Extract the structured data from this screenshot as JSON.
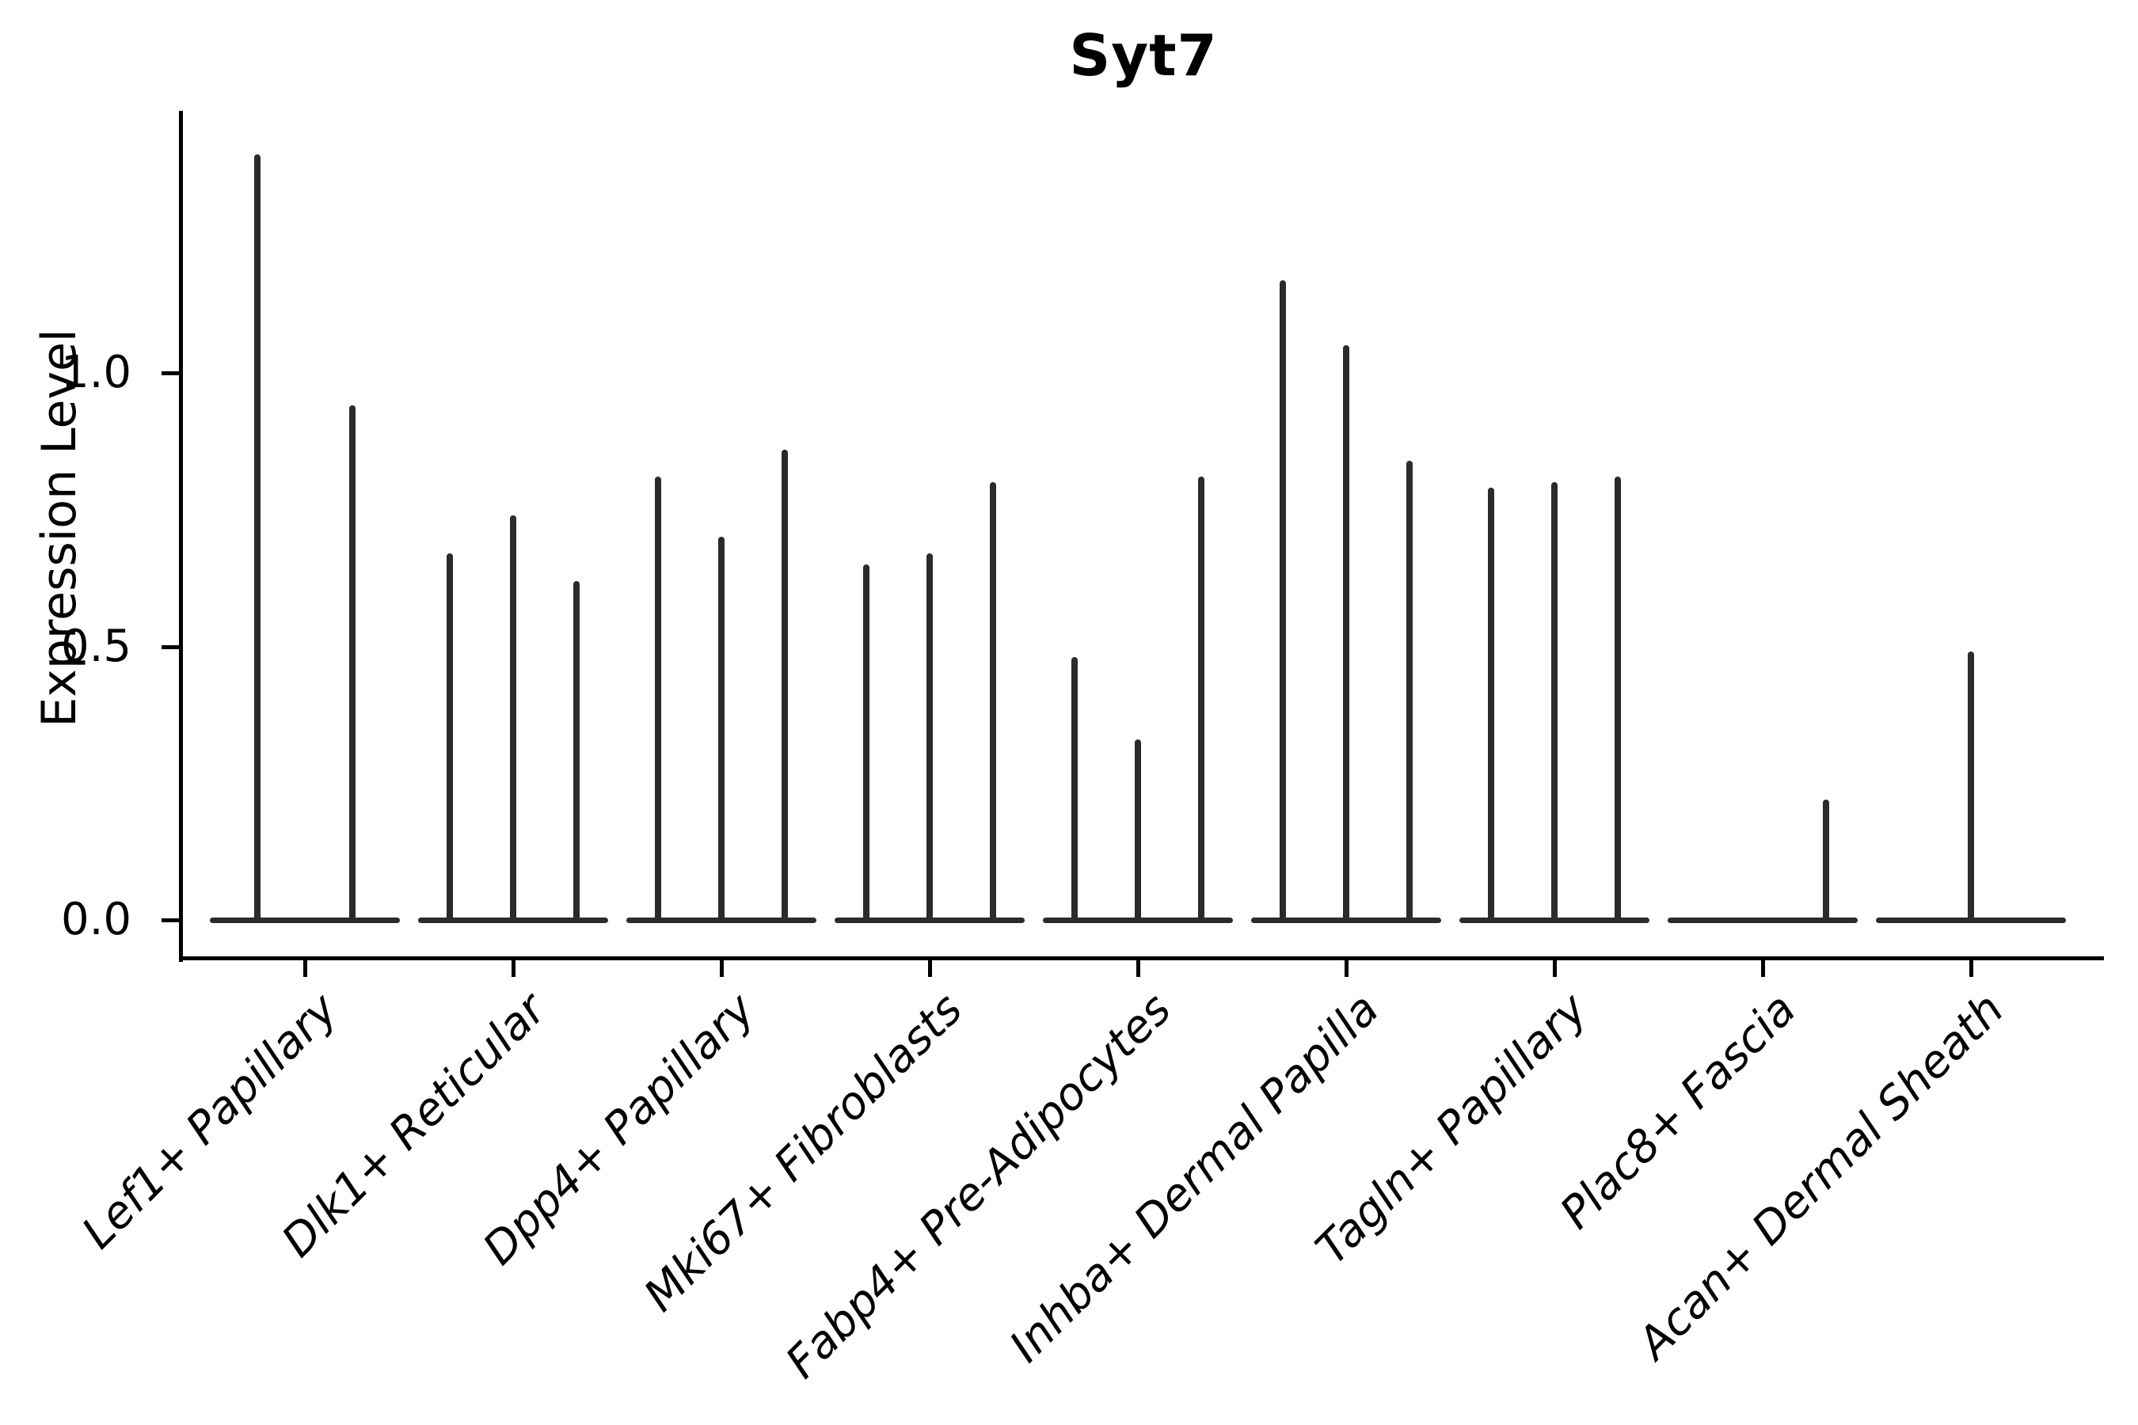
{
  "chart_data": {
    "type": "violin",
    "title": "Syt7",
    "xlabel": "",
    "ylabel": "Expression Level",
    "ytick_labels": [
      "0.0",
      "0.5",
      "1.0"
    ],
    "yticks": [
      0.0,
      0.5,
      1.0
    ],
    "ylim": [
      -0.07,
      1.48
    ],
    "legend": "none",
    "grid": false,
    "violin_color": "#2b2b2b",
    "shape_note": "zero-inflated needle violins: wide flat base at 0, thin vertical tail up to peak",
    "categories": [
      "Lef1+ Papillary",
      "Dlk1+ Reticular",
      "Dpp4+ Papillary",
      "Mki67+ Fibroblasts",
      "Fabp4+ Pre-Adipocytes",
      "Inhba+ Dermal Papilla",
      "Tagln+ Papillary",
      "Plac8+ Fascia",
      "Acan+ Dermal Sheath"
    ],
    "groups": [
      {
        "category": "Lef1+ Papillary",
        "violin_peaks": [
          1.4,
          0.94
        ]
      },
      {
        "category": "Dlk1+ Reticular",
        "violin_peaks": [
          0.67,
          0.74,
          0.62
        ]
      },
      {
        "category": "Dpp4+ Papillary",
        "violin_peaks": [
          0.81,
          0.7,
          0.86
        ]
      },
      {
        "category": "Mki67+ Fibroblasts",
        "violin_peaks": [
          0.65,
          0.67,
          0.8
        ]
      },
      {
        "category": "Fabp4+ Pre-Adipocytes",
        "violin_peaks": [
          0.48,
          0.33,
          0.81
        ]
      },
      {
        "category": "Inhba+ Dermal Papilla",
        "violin_peaks": [
          1.17,
          1.05,
          0.84
        ]
      },
      {
        "category": "Tagln+ Papillary",
        "violin_peaks": [
          0.79,
          0.8,
          0.81
        ]
      },
      {
        "category": "Plac8+ Fascia",
        "violin_peaks": [
          0.0,
          0.0,
          0.22
        ]
      },
      {
        "category": "Acan+ Dermal Sheath",
        "violin_peaks": [
          0.49
        ]
      }
    ]
  }
}
